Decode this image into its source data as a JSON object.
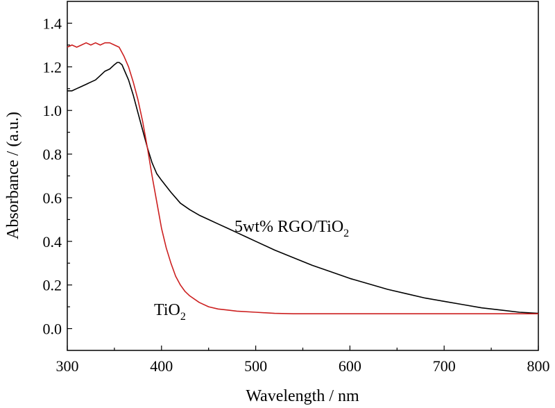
{
  "chart_data": {
    "type": "line",
    "xlabel": "Wavelength / nm",
    "ylabel": "Absorbance / (a.u.)",
    "xlim": [
      300,
      800
    ],
    "ylim": [
      -0.1,
      1.5
    ],
    "xticks": [
      "300",
      "400",
      "500",
      "600",
      "700",
      "800"
    ],
    "yticks": [
      "0.0",
      "0.2",
      "0.4",
      "0.6",
      "0.8",
      "1.0",
      "1.2",
      "1.4"
    ],
    "grid": false,
    "legend": "none",
    "annotations": [
      {
        "main": "5wt% RGO/TiO",
        "sub": "2",
        "series": "rgo"
      },
      {
        "main": "TiO",
        "sub": "2",
        "series": "tio2"
      }
    ],
    "series": [
      {
        "id": "rgo",
        "color": "#000000",
        "x": [
          300,
          305,
          310,
          315,
          320,
          325,
          330,
          335,
          340,
          345,
          350,
          353,
          355,
          358,
          360,
          365,
          370,
          375,
          380,
          385,
          390,
          395,
          400,
          410,
          420,
          430,
          440,
          450,
          460,
          470,
          480,
          490,
          500,
          520,
          540,
          560,
          580,
          600,
          620,
          640,
          660,
          680,
          700,
          720,
          740,
          760,
          780,
          800
        ],
        "y": [
          1.09,
          1.09,
          1.1,
          1.11,
          1.12,
          1.13,
          1.14,
          1.16,
          1.18,
          1.19,
          1.21,
          1.22,
          1.22,
          1.21,
          1.19,
          1.14,
          1.07,
          0.99,
          0.91,
          0.83,
          0.76,
          0.71,
          0.68,
          0.625,
          0.575,
          0.545,
          0.52,
          0.5,
          0.48,
          0.46,
          0.44,
          0.42,
          0.4,
          0.36,
          0.325,
          0.29,
          0.26,
          0.23,
          0.205,
          0.18,
          0.16,
          0.14,
          0.125,
          0.11,
          0.095,
          0.085,
          0.075,
          0.07
        ]
      },
      {
        "id": "tio2",
        "color": "#cc1f1f",
        "x": [
          300,
          305,
          310,
          315,
          320,
          325,
          330,
          335,
          340,
          345,
          350,
          355,
          360,
          365,
          370,
          375,
          380,
          385,
          390,
          395,
          400,
          405,
          410,
          415,
          420,
          425,
          430,
          440,
          450,
          460,
          470,
          480,
          500,
          520,
          540,
          560,
          580,
          600,
          620,
          640,
          660,
          680,
          700,
          720,
          740,
          760,
          780,
          800
        ],
        "y": [
          1.29,
          1.3,
          1.29,
          1.3,
          1.31,
          1.3,
          1.31,
          1.3,
          1.31,
          1.31,
          1.3,
          1.29,
          1.25,
          1.2,
          1.13,
          1.05,
          0.95,
          0.83,
          0.7,
          0.58,
          0.46,
          0.37,
          0.3,
          0.24,
          0.2,
          0.17,
          0.15,
          0.12,
          0.1,
          0.09,
          0.085,
          0.08,
          0.075,
          0.07,
          0.068,
          0.068,
          0.068,
          0.068,
          0.068,
          0.068,
          0.068,
          0.068,
          0.068,
          0.068,
          0.068,
          0.068,
          0.068,
          0.068
        ]
      }
    ]
  }
}
